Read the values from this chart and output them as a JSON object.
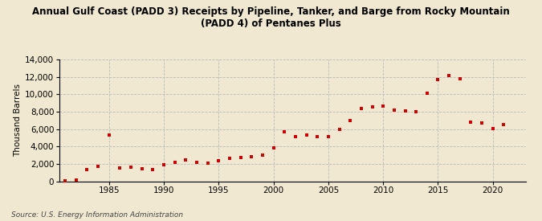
{
  "title": "Annual Gulf Coast (PADD 3) Receipts by Pipeline, Tanker, and Barge from Rocky Mountain\n(PADD 4) of Pentanes Plus",
  "ylabel": "Thousand Barrels",
  "source": "Source: U.S. Energy Information Administration",
  "background_color": "#f0e8d0",
  "plot_bg_color": "#f0e8d0",
  "marker_color": "#cc0000",
  "years": [
    1981,
    1982,
    1983,
    1984,
    1985,
    1986,
    1987,
    1988,
    1989,
    1990,
    1991,
    1992,
    1993,
    1994,
    1995,
    1996,
    1997,
    1998,
    1999,
    2000,
    2001,
    2002,
    2003,
    2004,
    2005,
    2006,
    2007,
    2008,
    2009,
    2010,
    2011,
    2012,
    2013,
    2014,
    2015,
    2016,
    2017,
    2018,
    2019,
    2020,
    2021
  ],
  "values": [
    50,
    100,
    1350,
    1700,
    5300,
    1500,
    1600,
    1400,
    1350,
    1900,
    2200,
    2450,
    2200,
    2100,
    2400,
    2600,
    2750,
    2850,
    3050,
    3800,
    5700,
    5100,
    5300,
    5150,
    5100,
    5950,
    6950,
    8350,
    8600,
    8700,
    8200,
    8100,
    8000,
    10100,
    11700,
    12200,
    11800,
    6800,
    6700,
    6050,
    6500
  ],
  "ylim": [
    0,
    14000
  ],
  "yticks": [
    0,
    2000,
    4000,
    6000,
    8000,
    10000,
    12000,
    14000
  ],
  "xlim": [
    1980.5,
    2023
  ],
  "xticks": [
    1985,
    1990,
    1995,
    2000,
    2005,
    2010,
    2015,
    2020
  ]
}
